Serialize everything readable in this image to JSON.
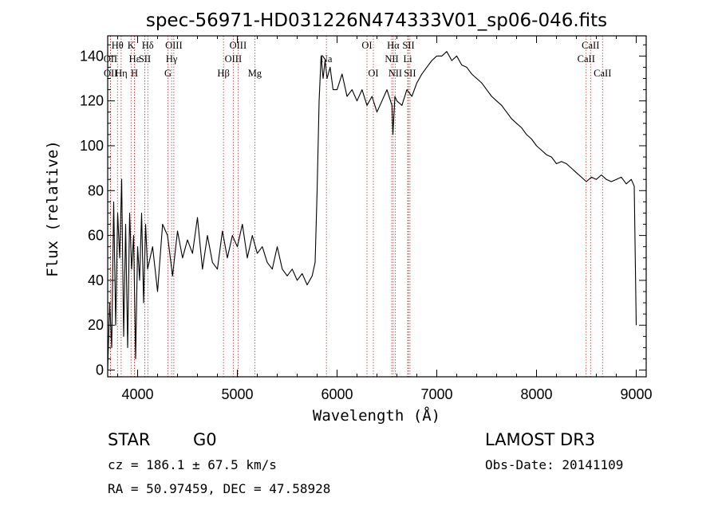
{
  "chart_data": {
    "type": "line",
    "title": "spec-56971-HD031226N474333V01_sp06-046.fits",
    "xlabel": "Wavelength (Å)",
    "ylabel": "Flux (relative)",
    "xlim": [
      3700,
      9100
    ],
    "ylim": [
      -3,
      149
    ],
    "xticks": [
      4000,
      5000,
      6000,
      7000,
      8000,
      9000
    ],
    "yticks": [
      0,
      20,
      40,
      60,
      80,
      100,
      120,
      140
    ],
    "grid": false,
    "series": [
      {
        "name": "flux",
        "x": [
          3700,
          3720,
          3740,
          3760,
          3780,
          3800,
          3820,
          3840,
          3860,
          3880,
          3900,
          3920,
          3940,
          3960,
          3980,
          4000,
          4020,
          4040,
          4060,
          4080,
          4100,
          4150,
          4200,
          4250,
          4300,
          4350,
          4400,
          4450,
          4500,
          4550,
          4600,
          4650,
          4700,
          4750,
          4800,
          4850,
          4900,
          4950,
          5000,
          5050,
          5100,
          5150,
          5200,
          5250,
          5300,
          5350,
          5400,
          5450,
          5500,
          5550,
          5600,
          5650,
          5700,
          5750,
          5780,
          5800,
          5820,
          5840,
          5860,
          5880,
          5900,
          5930,
          5960,
          6000,
          6050,
          6100,
          6150,
          6200,
          6250,
          6300,
          6350,
          6400,
          6450,
          6500,
          6550,
          6560,
          6580,
          6600,
          6650,
          6700,
          6750,
          6800,
          6850,
          6900,
          6950,
          7000,
          7050,
          7100,
          7150,
          7200,
          7250,
          7300,
          7350,
          7400,
          7450,
          7500,
          7550,
          7600,
          7650,
          7700,
          7750,
          7800,
          7850,
          7900,
          7950,
          8000,
          8050,
          8100,
          8150,
          8200,
          8250,
          8300,
          8350,
          8400,
          8450,
          8500,
          8550,
          8600,
          8650,
          8700,
          8750,
          8800,
          8850,
          8900,
          8950,
          8980,
          9000
        ],
        "y": [
          0,
          30,
          10,
          75,
          20,
          70,
          50,
          85,
          15,
          65,
          10,
          70,
          45,
          60,
          5,
          55,
          40,
          70,
          30,
          65,
          45,
          55,
          35,
          65,
          60,
          42,
          62,
          50,
          58,
          52,
          68,
          45,
          60,
          48,
          45,
          62,
          50,
          60,
          55,
          65,
          50,
          60,
          52,
          55,
          48,
          45,
          55,
          45,
          42,
          45,
          40,
          43,
          38,
          42,
          48,
          80,
          120,
          140,
          130,
          138,
          130,
          135,
          125,
          125,
          132,
          122,
          125,
          120,
          125,
          118,
          122,
          115,
          120,
          125,
          118,
          105,
          122,
          120,
          118,
          125,
          122,
          128,
          132,
          135,
          138,
          140,
          140,
          142,
          138,
          140,
          136,
          135,
          132,
          130,
          128,
          125,
          122,
          120,
          118,
          115,
          112,
          110,
          108,
          105,
          103,
          100,
          98,
          96,
          95,
          92,
          93,
          92,
          90,
          88,
          86,
          84,
          86,
          85,
          87,
          85,
          84,
          85,
          86,
          83,
          85,
          82,
          20
        ]
      }
    ],
    "spectral_lines": [
      {
        "label": "Hθ",
        "wavelength": 3798,
        "row": 1
      },
      {
        "label": "OII",
        "wavelength": 3727,
        "row": 2
      },
      {
        "label": "OII",
        "wavelength": 3729,
        "row": 3
      },
      {
        "label": "Hη",
        "wavelength": 3835,
        "row": 3
      },
      {
        "label": "K",
        "wavelength": 3934,
        "row": 1
      },
      {
        "label": "Hδ",
        "wavelength": 4102,
        "row": 1
      },
      {
        "label": "Hε",
        "wavelength": 3970,
        "row": 2
      },
      {
        "label": "SII",
        "wavelength": 4072,
        "row": 2
      },
      {
        "label": "H",
        "wavelength": 3968,
        "row": 3
      },
      {
        "label": "OIII",
        "wavelength": 4363,
        "row": 1
      },
      {
        "label": "Hγ",
        "wavelength": 4341,
        "row": 2
      },
      {
        "label": "G",
        "wavelength": 4304,
        "row": 3
      },
      {
        "label": "OIII",
        "wavelength": 5007,
        "row": 1
      },
      {
        "label": "OIII",
        "wavelength": 4959,
        "row": 2
      },
      {
        "label": "Hβ",
        "wavelength": 4861,
        "row": 3
      },
      {
        "label": "Mg",
        "wavelength": 5175,
        "row": 3
      },
      {
        "label": "Na",
        "wavelength": 5893,
        "row": 2
      },
      {
        "label": "OI",
        "wavelength": 6300,
        "row": 1
      },
      {
        "label": "OI",
        "wavelength": 6364,
        "row": 3
      },
      {
        "label": "Hα",
        "wavelength": 6563,
        "row": 1
      },
      {
        "label": "SII",
        "wavelength": 6716,
        "row": 1
      },
      {
        "label": "NII",
        "wavelength": 6548,
        "row": 2
      },
      {
        "label": "Li",
        "wavelength": 6708,
        "row": 2
      },
      {
        "label": "NII",
        "wavelength": 6583,
        "row": 3
      },
      {
        "label": "SII",
        "wavelength": 6731,
        "row": 3
      },
      {
        "label": "CaII",
        "wavelength": 8542,
        "row": 1
      },
      {
        "label": "CaII",
        "wavelength": 8498,
        "row": 2
      },
      {
        "label": "CaII",
        "wavelength": 8662,
        "row": 3
      }
    ]
  },
  "info": {
    "class": "STAR",
    "subclass": "G0",
    "survey": "LAMOST DR3",
    "cz": "cz = 186.1 ± 67.5 km/s",
    "obs_date": "Obs-Date: 20141109",
    "coords": "RA =  50.97459, DEC =  47.58928"
  }
}
